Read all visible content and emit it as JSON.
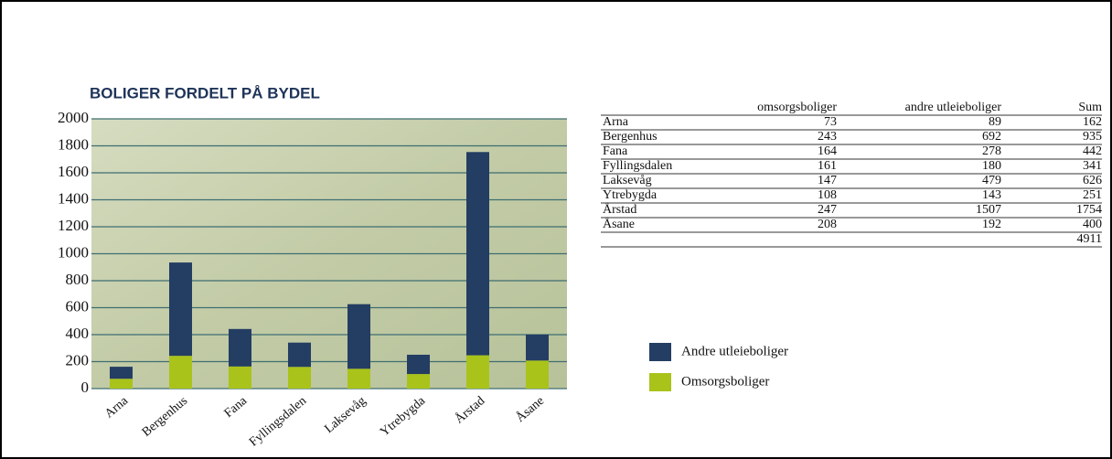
{
  "chart_data": {
    "type": "stacked_bar",
    "title": "BOLIGER FORDELT PÅ BYDEL",
    "categories": [
      "Arna",
      "Bergenhus",
      "Fana",
      "Fyllingsdalen",
      "Laksevåg",
      "Ytrebygda",
      "Årstad",
      "Åsane"
    ],
    "series": [
      {
        "name": "Omsorgsboliger",
        "color": "#a9c31a",
        "values": [
          73,
          243,
          164,
          161,
          147,
          108,
          247,
          208
        ]
      },
      {
        "name": "Andre utleieboliger",
        "color": "#243d63",
        "values": [
          89,
          692,
          278,
          180,
          479,
          143,
          1507,
          192
        ]
      }
    ],
    "ylim": [
      0,
      2000
    ],
    "yticks": [
      0,
      200,
      400,
      600,
      800,
      1000,
      1200,
      1400,
      1600,
      1800,
      2000
    ],
    "grid": true
  },
  "table": {
    "columns": [
      "omsorgsboliger",
      "andre utleieboliger",
      "Sum"
    ],
    "rows": [
      {
        "label": "Arna",
        "values": [
          73,
          89,
          162
        ]
      },
      {
        "label": "Bergenhus",
        "values": [
          243,
          692,
          935
        ]
      },
      {
        "label": "Fana",
        "values": [
          164,
          278,
          442
        ]
      },
      {
        "label": "Fyllingsdalen",
        "values": [
          161,
          180,
          341
        ]
      },
      {
        "label": "Laksevåg",
        "values": [
          147,
          479,
          626
        ]
      },
      {
        "label": "Ytrebygda",
        "values": [
          108,
          143,
          251
        ]
      },
      {
        "label": "Årstad",
        "values": [
          247,
          1507,
          1754
        ]
      },
      {
        "label": "Åsane",
        "values": [
          208,
          192,
          400
        ]
      }
    ],
    "total": 4911
  }
}
